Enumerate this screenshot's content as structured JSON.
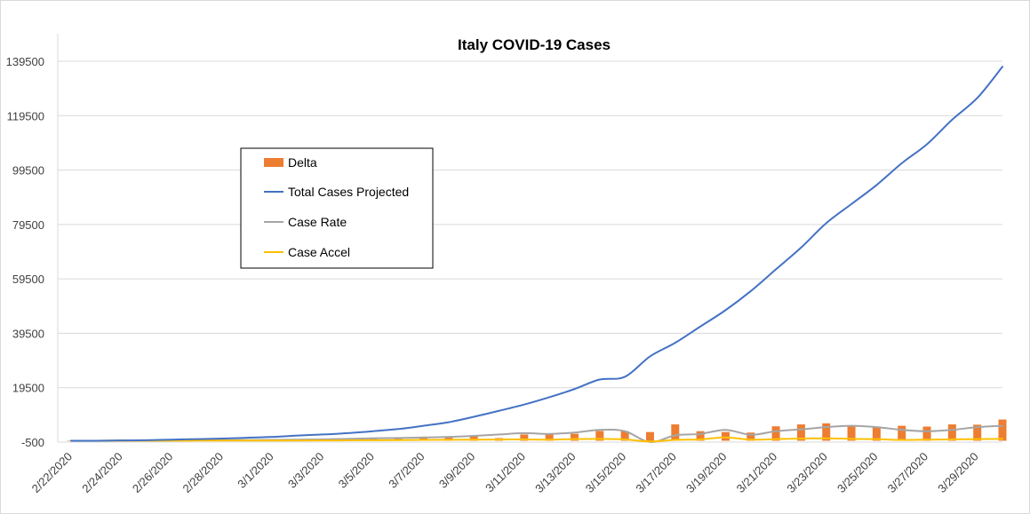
{
  "chart_data": {
    "type": "line",
    "title": "Italy COVID-19 Cases",
    "xlabel": "",
    "ylabel": "",
    "ylim": [
      -500,
      149500
    ],
    "yticks": [
      "-500",
      "19500",
      "39500",
      "59500",
      "79500",
      "99500",
      "119500",
      "139500"
    ],
    "ytick_values": [
      -500,
      19500,
      39500,
      59500,
      79500,
      99500,
      119500,
      139500
    ],
    "xtick_labels": [
      "2/22/2020",
      "2/24/2020",
      "2/26/2020",
      "2/28/2020",
      "3/1/2020",
      "3/3/2020",
      "3/5/2020",
      "3/7/2020",
      "3/9/2020",
      "3/11/2020",
      "3/13/2020",
      "3/15/2020",
      "3/17/2020",
      "3/19/2020",
      "3/21/2020",
      "3/23/2020",
      "3/25/2020",
      "3/27/2020",
      "3/29/2020"
    ],
    "x": [
      "2/22/2020",
      "2/23/2020",
      "2/24/2020",
      "2/25/2020",
      "2/26/2020",
      "2/27/2020",
      "2/28/2020",
      "2/29/2020",
      "3/1/2020",
      "3/2/2020",
      "3/3/2020",
      "3/4/2020",
      "3/5/2020",
      "3/6/2020",
      "3/7/2020",
      "3/8/2020",
      "3/9/2020",
      "3/10/2020",
      "3/11/2020",
      "3/12/2020",
      "3/13/2020",
      "3/14/2020",
      "3/15/2020",
      "3/16/2020",
      "3/17/2020",
      "3/18/2020",
      "3/19/2020",
      "3/20/2020",
      "3/21/2020",
      "3/22/2020",
      "3/23/2020",
      "3/24/2020",
      "3/25/2020",
      "3/26/2020",
      "3/27/2020",
      "3/28/2020",
      "3/29/2020",
      "3/30/2020"
    ],
    "series": [
      {
        "name": "Delta",
        "kind": "bar",
        "color": "#ed7d31",
        "values": [
          0,
          100,
          80,
          120,
          150,
          200,
          230,
          240,
          560,
          340,
          470,
          590,
          770,
          780,
          1250,
          1490,
          1800,
          980,
          2310,
          2650,
          2550,
          3600,
          3500,
          3200,
          6000,
          3500,
          3200,
          3000,
          5300,
          6000,
          6400,
          5500,
          4900,
          5500,
          5200,
          6000,
          5900,
          7800
        ]
      },
      {
        "name": "Total Cases Projected",
        "kind": "line",
        "color": "#4472c4",
        "values": [
          0,
          0,
          100,
          200,
          400,
          600,
          800,
          1100,
          1400,
          1900,
          2300,
          2800,
          3500,
          4300,
          5500,
          6800,
          8800,
          11000,
          13300,
          16000,
          19000,
          22500,
          23500,
          31000,
          36000,
          42000,
          48000,
          55000,
          63000,
          71000,
          80000,
          87000,
          94000,
          102000,
          109000,
          118000,
          126000,
          137500
        ]
      },
      {
        "name": "Case Rate",
        "kind": "line",
        "color": "#a5a5a5",
        "values": [
          0,
          0,
          50,
          80,
          100,
          150,
          200,
          250,
          300,
          400,
          500,
          700,
          900,
          1000,
          1200,
          1400,
          1800,
          2300,
          2800,
          2500,
          3000,
          4000,
          3500,
          -500,
          2000,
          2500,
          4000,
          2200,
          3500,
          4200,
          5000,
          5500,
          5000,
          4000,
          3500,
          4000,
          5000,
          5500
        ]
      },
      {
        "name": "Case Accel",
        "kind": "line",
        "color": "#ffc000",
        "values": [
          0,
          0,
          20,
          30,
          40,
          50,
          60,
          70,
          80,
          90,
          100,
          150,
          200,
          250,
          300,
          350,
          400,
          450,
          500,
          400,
          600,
          700,
          500,
          -300,
          300,
          500,
          1200,
          400,
          600,
          800,
          900,
          700,
          600,
          300,
          400,
          500,
          600,
          700
        ]
      }
    ],
    "legend": {
      "position": "left",
      "entries": [
        "Delta",
        "Total Cases Projected",
        "Case Rate",
        "Case Accel"
      ]
    },
    "grid": true
  }
}
